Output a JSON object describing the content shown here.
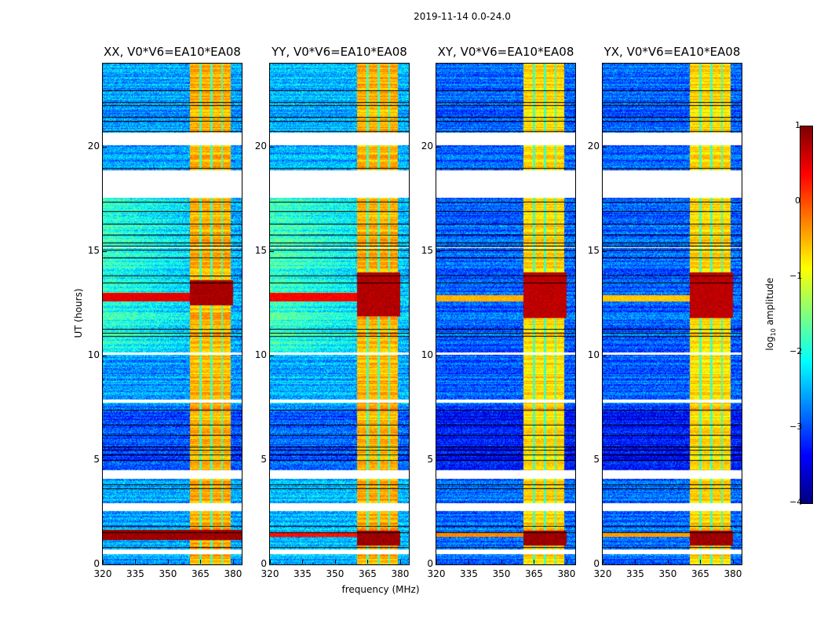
{
  "chart_data": {
    "type": "heatmap",
    "title": "2019-11-14 0.0-24.0",
    "xlabel": "frequency (MHz)",
    "ylabel": "UT (hours)",
    "xlim": [
      320,
      384
    ],
    "ylim": [
      0,
      24
    ],
    "xticks": [
      320,
      335,
      350,
      365,
      380
    ],
    "yticks": [
      0,
      5,
      10,
      15,
      20
    ],
    "colorbar": {
      "label": "log10 amplitude",
      "label_main": "log",
      "label_sub": "10",
      "label_tail": " amplitude",
      "range": [
        -4,
        1
      ],
      "ticks": [
        1,
        0,
        -1,
        -2,
        -3,
        -4
      ],
      "tick_labels": [
        "1",
        "0",
        "−1",
        "−2",
        "−3",
        "−4"
      ],
      "colormap": "jet"
    },
    "flagged_hours": [
      [
        20.1,
        20.7
      ],
      [
        17.55,
        18.9
      ],
      [
        4.1,
        4.5
      ],
      [
        2.55,
        2.95
      ],
      [
        0.5,
        0.7
      ],
      [
        7.75,
        7.9
      ],
      [
        10.05,
        10.15
      ],
      [
        15.15,
        15.2
      ]
    ],
    "bright_band_mhz": [
      360,
      379
    ],
    "panels": [
      {
        "title": "XX, V0*V6=EA10*EA08",
        "base": -2.6,
        "band_level": -0.5,
        "events": [
          {
            "hours": [
              12.4,
              13.6
            ],
            "mhz": [
              360,
              380
            ],
            "level": 0.8
          },
          {
            "hours": [
              1.15,
              1.65
            ],
            "mhz": [
              320,
              384
            ],
            "level": 0.85
          },
          {
            "hours": [
              12.6,
              13.0
            ],
            "mhz": [
              320,
              360
            ],
            "level": 0.5
          }
        ]
      },
      {
        "title": "YY, V0*V6=EA10*EA08",
        "base": -2.5,
        "band_level": -0.5,
        "events": [
          {
            "hours": [
              11.9,
              14.0
            ],
            "mhz": [
              360,
              380
            ],
            "level": 0.75
          },
          {
            "hours": [
              0.9,
              1.6
            ],
            "mhz": [
              360,
              380
            ],
            "level": 0.85
          },
          {
            "hours": [
              12.6,
              13.0
            ],
            "mhz": [
              320,
              360
            ],
            "level": 0.4
          },
          {
            "hours": [
              1.3,
              1.5
            ],
            "mhz": [
              320,
              360
            ],
            "level": 0.3
          }
        ]
      },
      {
        "title": "XY, V0*V6=EA10*EA08",
        "base": -2.9,
        "band_level": -0.7,
        "events": [
          {
            "hours": [
              11.8,
              14.0
            ],
            "mhz": [
              360,
              380
            ],
            "level": 0.7
          },
          {
            "hours": [
              0.9,
              1.6
            ],
            "mhz": [
              360,
              380
            ],
            "level": 0.85
          },
          {
            "hours": [
              12.6,
              12.9
            ],
            "mhz": [
              320,
              360
            ],
            "level": -0.5
          },
          {
            "hours": [
              1.3,
              1.5
            ],
            "mhz": [
              320,
              360
            ],
            "level": -0.3
          }
        ]
      },
      {
        "title": "YX, V0*V6=EA10*EA08",
        "base": -2.9,
        "band_level": -0.7,
        "events": [
          {
            "hours": [
              11.8,
              14.0
            ],
            "mhz": [
              360,
              380
            ],
            "level": 0.7
          },
          {
            "hours": [
              0.9,
              1.6
            ],
            "mhz": [
              360,
              380
            ],
            "level": 0.85
          },
          {
            "hours": [
              12.6,
              12.9
            ],
            "mhz": [
              320,
              360
            ],
            "level": -0.6
          },
          {
            "hours": [
              1.3,
              1.5
            ],
            "mhz": [
              320,
              360
            ],
            "level": -0.4
          }
        ]
      }
    ]
  }
}
